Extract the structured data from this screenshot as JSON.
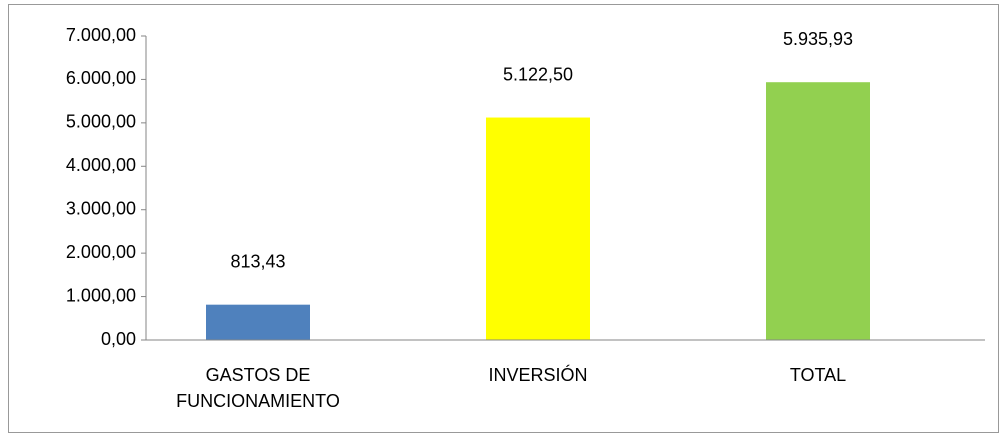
{
  "chart_data": {
    "type": "bar",
    "categories": [
      "GASTOS DE FUNCIONAMIENTO",
      "INVERSIÓN",
      "TOTAL"
    ],
    "values": [
      813.43,
      5122.5,
      5935.93
    ],
    "value_labels": [
      "813,43",
      "5.122,50",
      "5.935,93"
    ],
    "colors": [
      "#4f81bd",
      "#ffff00",
      "#92d050"
    ],
    "ylim": [
      0,
      7000
    ],
    "yticks": [
      {
        "value": 0,
        "label": "0,00"
      },
      {
        "value": 1000,
        "label": "1.000,00"
      },
      {
        "value": 2000,
        "label": "2.000,00"
      },
      {
        "value": 3000,
        "label": "3.000,00"
      },
      {
        "value": 4000,
        "label": "4.000,00"
      },
      {
        "value": 5000,
        "label": "5.000,00"
      },
      {
        "value": 6000,
        "label": "6.000,00"
      },
      {
        "value": 7000,
        "label": "7.000,00"
      }
    ],
    "grid": false
  }
}
